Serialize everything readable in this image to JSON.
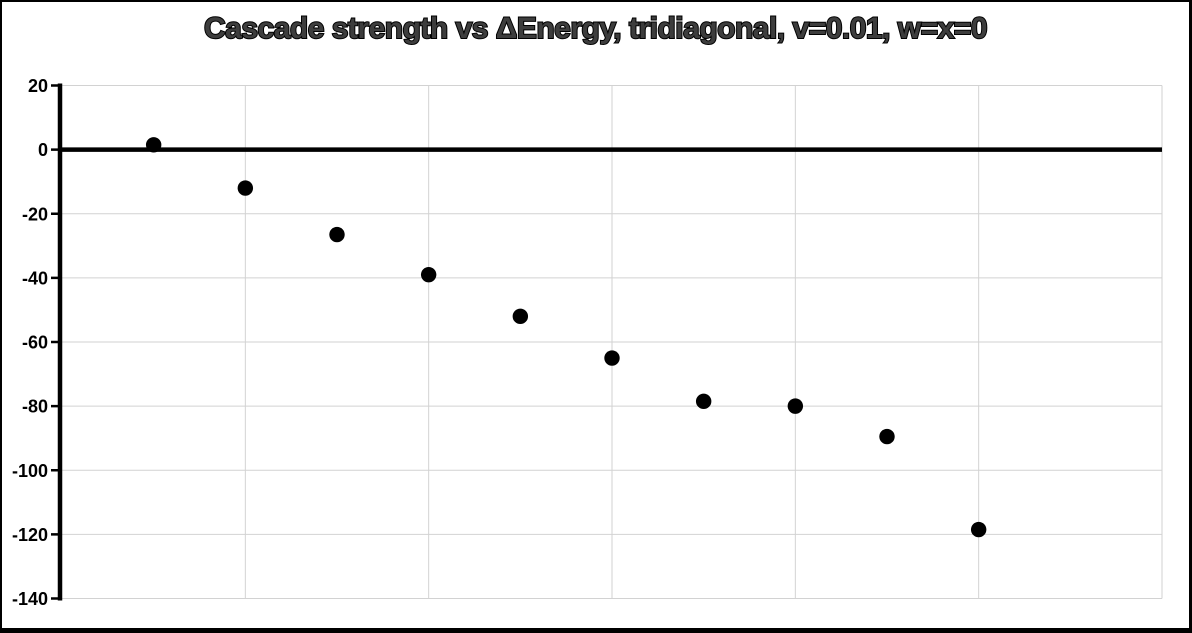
{
  "chart_data": {
    "type": "scatter",
    "title": "Cascade strength vs ΔEnergy, tridiagonal, v=0.01, w=x=0",
    "x": [
      1,
      2,
      3,
      4,
      5,
      6,
      7,
      8,
      9,
      10
    ],
    "y": [
      1.5,
      -12,
      -26.5,
      -39,
      -52,
      -65,
      -78.5,
      -80,
      -89.5,
      -118.5
    ],
    "xlabel": "",
    "ylabel": "",
    "xlim": [
      0,
      12
    ],
    "ylim": [
      -140,
      20
    ],
    "y_ticks": [
      20,
      0,
      -20,
      -40,
      -60,
      -80,
      -100,
      -120,
      -140
    ],
    "x_gridlines": [
      2,
      4,
      6,
      8,
      10,
      12
    ],
    "x_tick_labels_shown": false,
    "grid": true,
    "legend": "none",
    "zero_line": true,
    "marker": {
      "shape": "circle",
      "color": "#000000",
      "radius_px": 7.7
    },
    "colors": {
      "background": "#ffffff",
      "frame_border": "#000000",
      "gridline": "#d2d2d2",
      "axis": "#000000",
      "zero_line": "#000000",
      "tick_label": "#000000",
      "title_fill": "#3d3d3d",
      "title_outline": "#000000"
    }
  }
}
